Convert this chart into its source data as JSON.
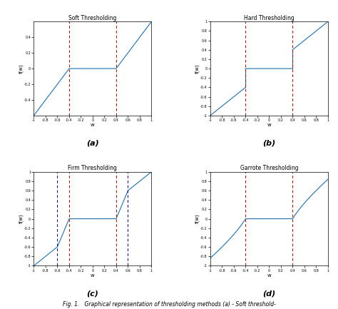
{
  "threshold_soft": 0.4,
  "threshold_hard": 0.4,
  "threshold_firm_inner": 0.4,
  "threshold_firm_outer": 0.6,
  "threshold_garrote": 0.4,
  "xlim": [
    -1,
    1
  ],
  "ylim_soft": [
    -0.6,
    0.6
  ],
  "ylim_hard": [
    -1,
    1
  ],
  "ylim_firm": [
    -1,
    1
  ],
  "ylim_garrote": [
    -1,
    1
  ],
  "title_a": "Soft Thresholding",
  "title_b": "Hard Thresholding",
  "title_c": "Firm Thresholding",
  "title_d": "Garrote Thresholding",
  "xlabel": "w",
  "ylabel": "f(w)",
  "line_color": "#1f6fad",
  "red_dash_color": "#cc0000",
  "blue_dash_color": "#0000cc",
  "background_color": "white",
  "label_a": "(a)",
  "label_b": "(b)",
  "label_c": "(c)",
  "label_d": "(d)",
  "caption": "Fig. 1.   Graphical representation of thresholding methods (a) - Soft threshold-"
}
